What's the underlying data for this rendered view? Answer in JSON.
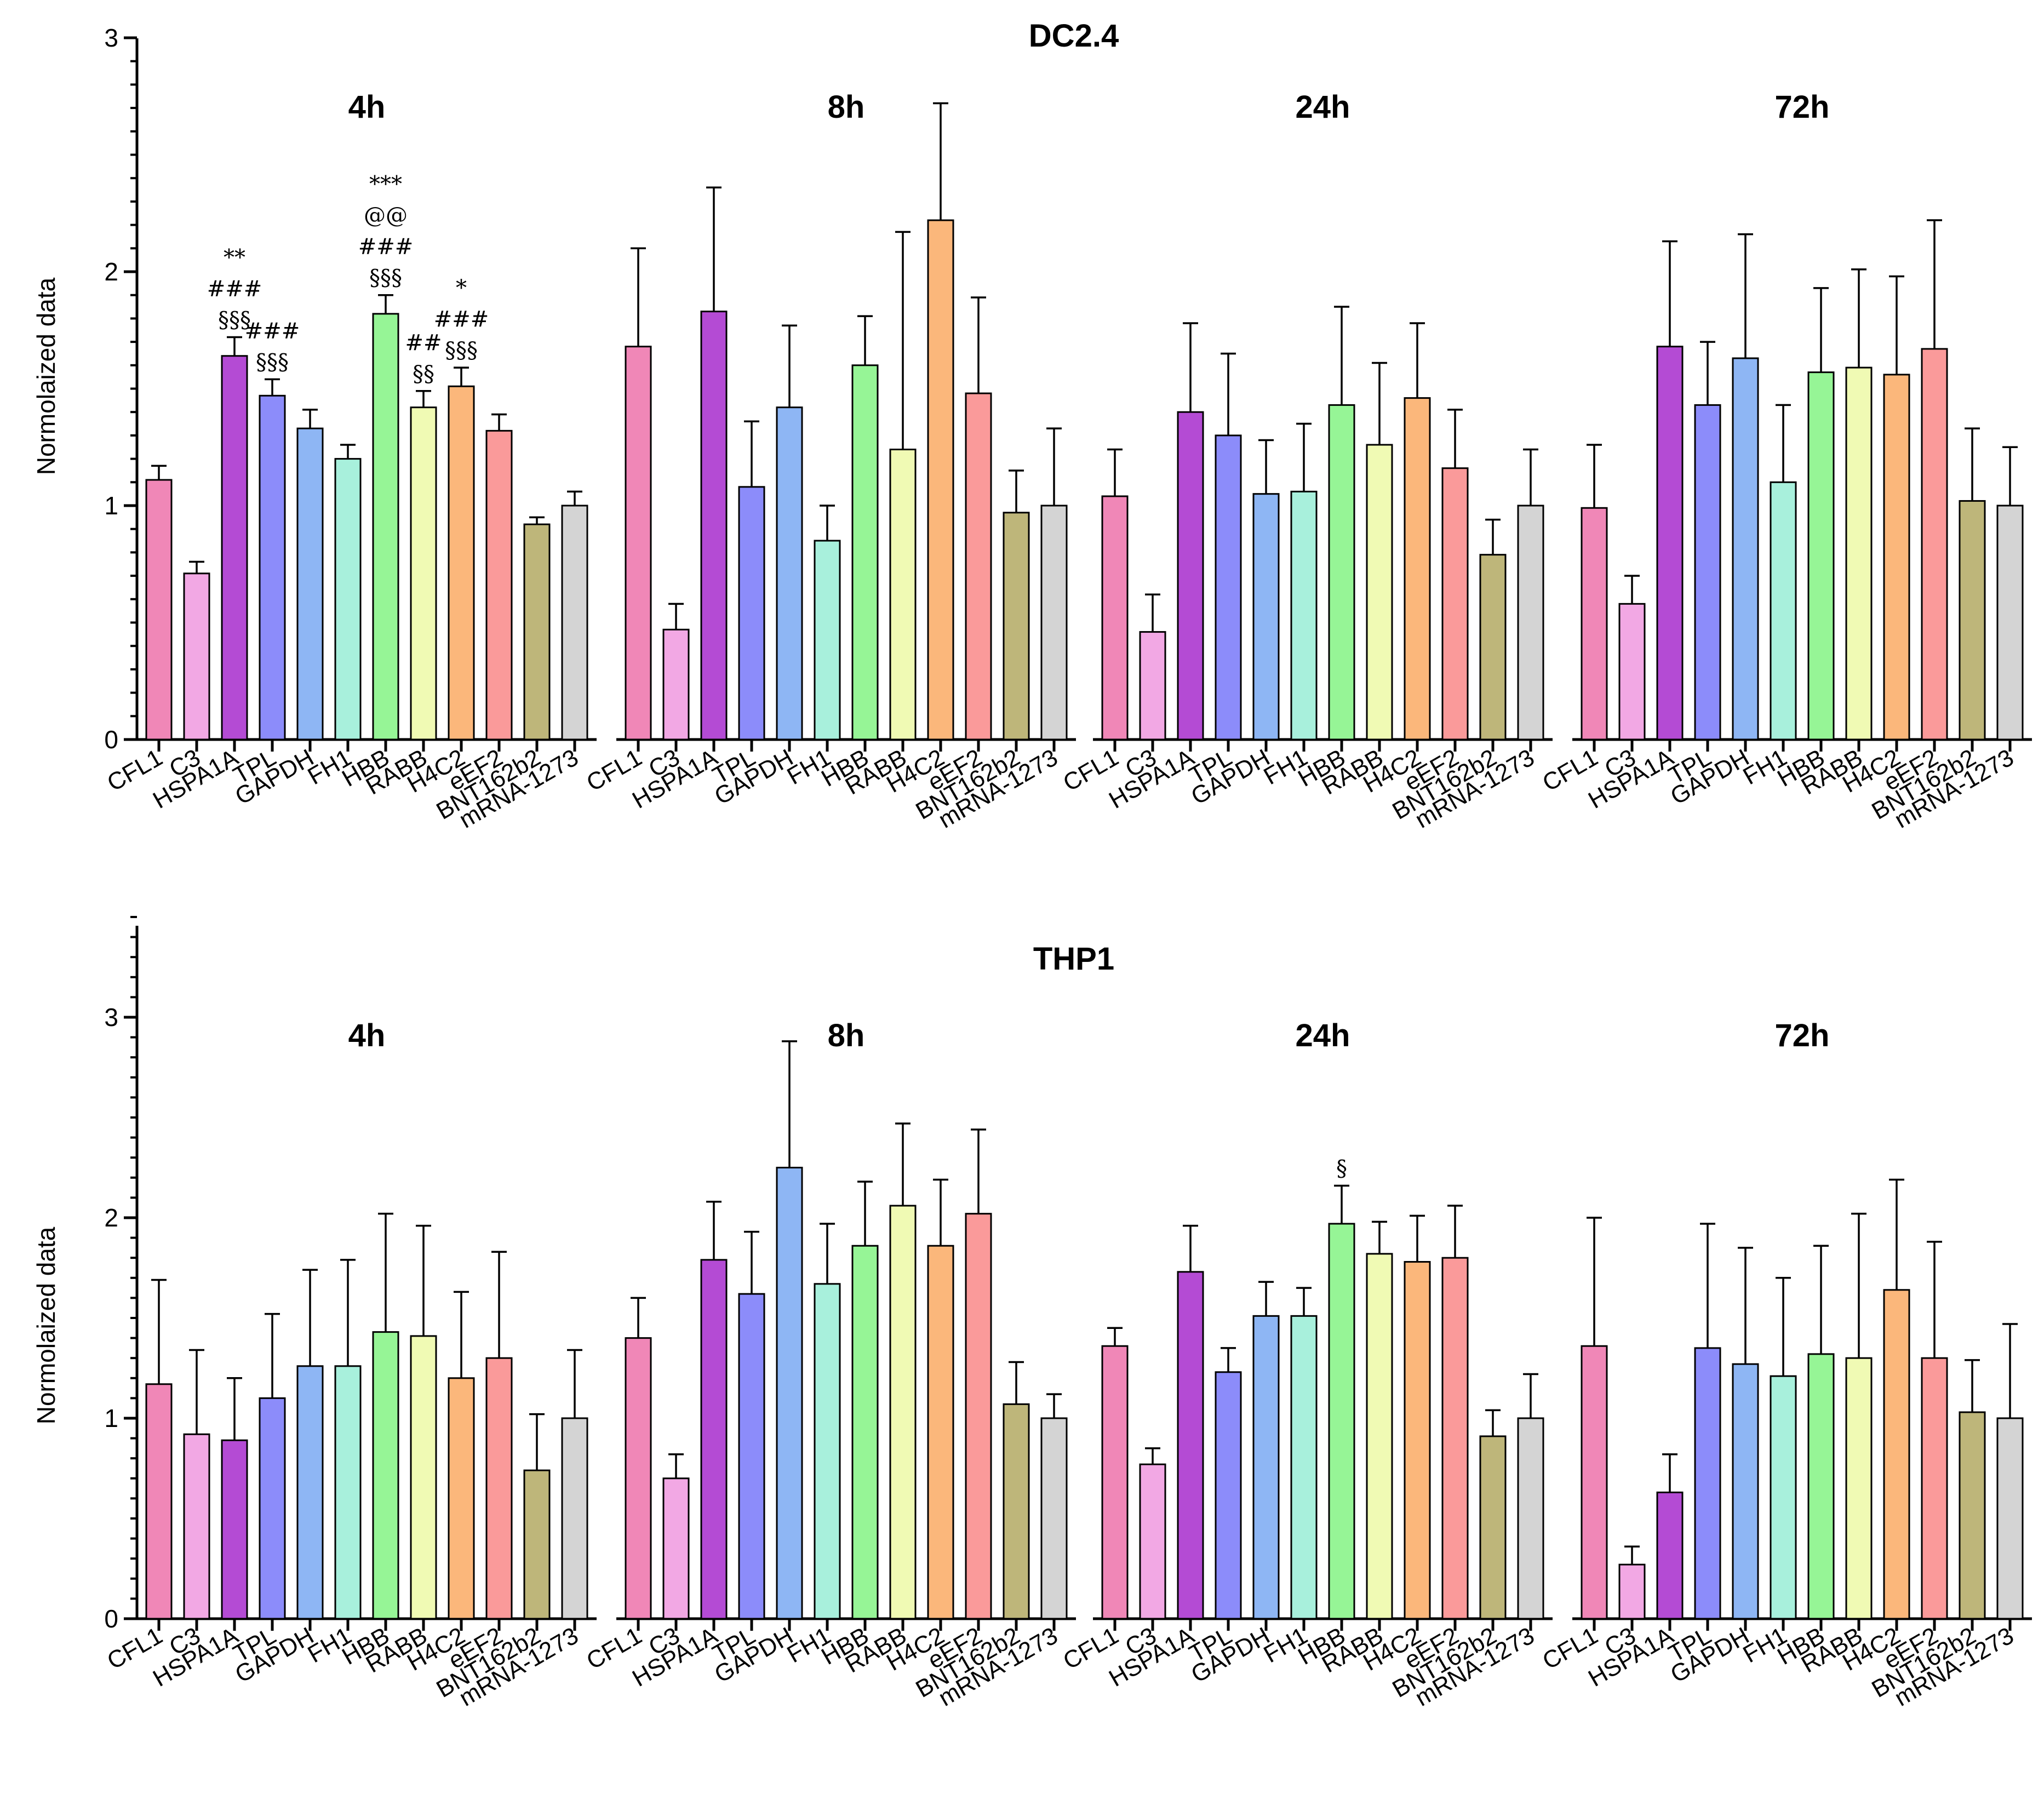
{
  "colors": {
    "CFL1": "#F087B7",
    "C3": "#F2A8E4",
    "HSPA1A": "#B44BD4",
    "TPL": "#8C8CFA",
    "GAPDH": "#8EB6F4",
    "FH1": "#A8F0DC",
    "HBB": "#96F596",
    "RABB": "#F0FAB4",
    "H4C2": "#FBB77B",
    "eEF2": "#FA9A9A",
    "BNT162b2": "#BEB67A",
    "mRNA-1273": "#D4D4D4"
  },
  "chart_data": [
    {
      "type": "bar",
      "title": "DC2.4",
      "ylabel": "Normolaized data",
      "ylim": [
        0,
        3
      ],
      "yticks": [
        "0",
        "1",
        "2",
        "3"
      ],
      "categories": [
        "CFL1",
        "C3",
        "HSPA1A",
        "TPL",
        "GAPDH",
        "FH1",
        "HBB",
        "RABB",
        "H4C2",
        "eEF2",
        "BNT162b2",
        "mRNA-1273"
      ],
      "groups": [
        {
          "label": "4h",
          "values": [
            1.11,
            0.71,
            1.64,
            1.47,
            1.33,
            1.2,
            1.82,
            1.42,
            1.51,
            1.32,
            0.92,
            1.0
          ],
          "errors": [
            0.06,
            0.05,
            0.08,
            0.07,
            0.08,
            0.06,
            0.08,
            0.07,
            0.08,
            0.07,
            0.03,
            0.06
          ],
          "annotations": [
            {
              "index": 2,
              "lines": [
                "**",
                "###",
                "§§§"
              ]
            },
            {
              "index": 3,
              "lines": [
                "###",
                "§§§"
              ]
            },
            {
              "index": 6,
              "lines": [
                "***",
                "@@",
                "###",
                "§§§"
              ]
            },
            {
              "index": 7,
              "lines": [
                "##",
                "§§"
              ]
            },
            {
              "index": 8,
              "lines": [
                "*",
                "###",
                "§§§"
              ]
            }
          ]
        },
        {
          "label": "8h",
          "values": [
            1.68,
            0.47,
            1.83,
            1.08,
            1.42,
            0.85,
            1.6,
            1.24,
            2.22,
            1.48,
            0.97,
            1.0
          ],
          "errors": [
            0.42,
            0.11,
            0.53,
            0.28,
            0.35,
            0.15,
            0.21,
            0.93,
            0.5,
            0.41,
            0.18,
            0.33
          ],
          "annotations": []
        },
        {
          "label": "24h",
          "values": [
            1.04,
            0.46,
            1.4,
            1.3,
            1.05,
            1.06,
            1.43,
            1.26,
            1.46,
            1.16,
            0.79,
            1.0
          ],
          "errors": [
            0.2,
            0.16,
            0.38,
            0.35,
            0.23,
            0.29,
            0.42,
            0.35,
            0.32,
            0.25,
            0.15,
            0.24
          ],
          "annotations": []
        },
        {
          "label": "72h",
          "values": [
            0.99,
            0.58,
            1.68,
            1.43,
            1.63,
            1.1,
            1.57,
            1.59,
            1.56,
            1.67,
            1.02,
            1.0
          ],
          "errors": [
            0.27,
            0.12,
            0.45,
            0.27,
            0.53,
            0.33,
            0.36,
            0.42,
            0.42,
            0.55,
            0.31,
            0.25
          ],
          "annotations": []
        }
      ]
    },
    {
      "type": "bar",
      "title": "THP1",
      "ylabel": "Normolaized data",
      "ylim": [
        0,
        3.5
      ],
      "yticks": [
        "0",
        "1",
        "2",
        "3"
      ],
      "categories": [
        "CFL1",
        "C3",
        "HSPA1A",
        "TPL",
        "GAPDH",
        "FH1",
        "HBB",
        "RABB",
        "H4C2",
        "eEF2",
        "BNT162b2",
        "mRNA-1273"
      ],
      "groups": [
        {
          "label": "4h",
          "values": [
            1.17,
            0.92,
            0.89,
            1.1,
            1.26,
            1.26,
            1.43,
            1.41,
            1.2,
            1.3,
            0.74,
            1.0
          ],
          "errors": [
            0.52,
            0.42,
            0.31,
            0.42,
            0.48,
            0.53,
            0.59,
            0.55,
            0.43,
            0.53,
            0.28,
            0.34
          ],
          "annotations": []
        },
        {
          "label": "8h",
          "values": [
            1.4,
            0.7,
            1.79,
            1.62,
            2.25,
            1.67,
            1.86,
            2.06,
            1.86,
            2.02,
            1.07,
            1.0
          ],
          "errors": [
            0.2,
            0.12,
            0.29,
            0.31,
            0.63,
            0.3,
            0.32,
            0.41,
            0.33,
            0.42,
            0.21,
            0.12
          ],
          "annotations": []
        },
        {
          "label": "24h",
          "values": [
            1.36,
            0.77,
            1.73,
            1.23,
            1.51,
            1.51,
            1.97,
            1.82,
            1.78,
            1.8,
            0.91,
            1.0
          ],
          "errors": [
            0.09,
            0.08,
            0.23,
            0.12,
            0.17,
            0.14,
            0.19,
            0.16,
            0.23,
            0.26,
            0.13,
            0.22
          ],
          "annotations": [
            {
              "index": 6,
              "lines": [
                "§"
              ]
            }
          ]
        },
        {
          "label": "72h",
          "values": [
            1.36,
            0.27,
            0.63,
            1.35,
            1.27,
            1.21,
            1.32,
            1.3,
            1.64,
            1.3,
            1.03,
            1.0
          ],
          "errors": [
            0.64,
            0.09,
            0.19,
            0.62,
            0.58,
            0.49,
            0.54,
            0.72,
            0.55,
            0.58,
            0.26,
            0.47
          ],
          "annotations": []
        }
      ]
    }
  ]
}
